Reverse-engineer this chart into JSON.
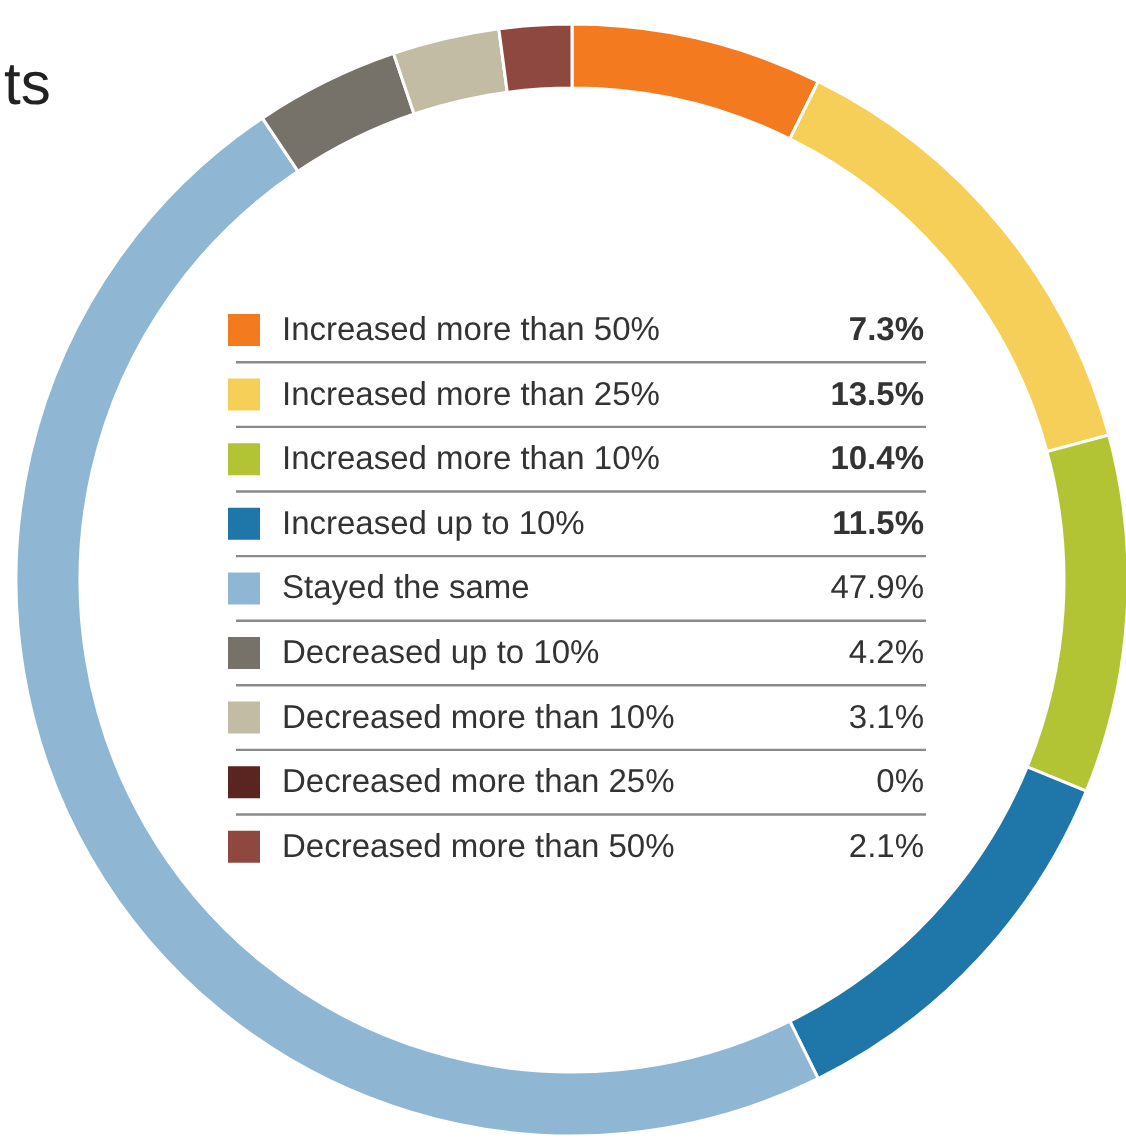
{
  "chart_data": {
    "type": "donut",
    "title": "ts",
    "legend": "center",
    "categories": [
      "Increased more than 50%",
      "Increased more than 25%",
      "Increased more than 10%",
      "Increased up to 10%",
      "Stayed the same",
      "Decreased up to 10%",
      "Decreased more than 10%",
      "Decreased more than 25%",
      "Decreased more than 50%"
    ],
    "values": [
      7.3,
      13.5,
      10.4,
      11.5,
      47.9,
      4.2,
      3.1,
      0,
      2.1
    ],
    "value_labels": [
      "7.3%",
      "13.5%",
      "10.4%",
      "11.5%",
      "47.9%",
      "4.2%",
      "3.1%",
      "0%",
      "2.1%"
    ],
    "colors": [
      "#f47a20",
      "#f5cf57",
      "#b2c434",
      "#1f77a9",
      "#8fb7d3",
      "#767169",
      "#c2bca4",
      "#5a2520",
      "#8e4840"
    ]
  }
}
